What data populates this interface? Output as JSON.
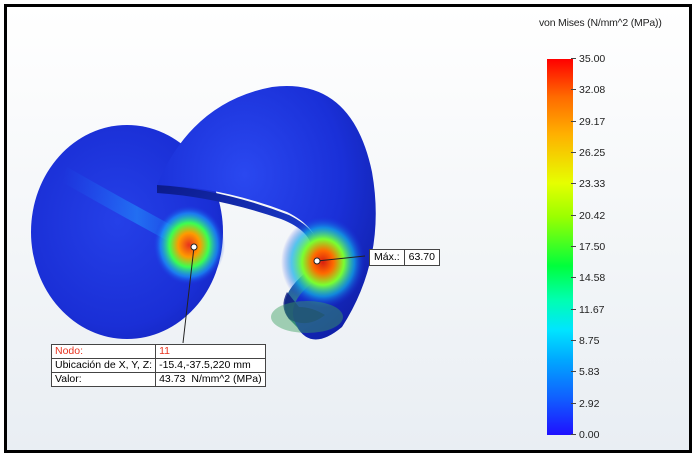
{
  "legend": {
    "title": "von Mises (N/mm^2 (MPa))",
    "ticks": [
      "35.00",
      "32.08",
      "29.17",
      "26.25",
      "23.33",
      "20.42",
      "17.50",
      "14.58",
      "11.67",
      "8.75",
      "5.83",
      "2.92",
      "0.00"
    ],
    "max": 35.0,
    "min": 0.0
  },
  "max_marker": {
    "label": "Máx.:",
    "value": "63.70"
  },
  "probe": {
    "node_label": "Nodo:",
    "node_value": "11",
    "location_label": "Ubicación de X, Y, Z:",
    "location_value": "-15.4,-37.5,220 mm",
    "value_label": "Valor:",
    "value_value": "43.73",
    "value_unit": "N/mm^2 (MPa)"
  },
  "colors": {
    "mesh_blue": "#1a2fe0",
    "hot_red": "#e8321e",
    "frame": "#000000"
  }
}
